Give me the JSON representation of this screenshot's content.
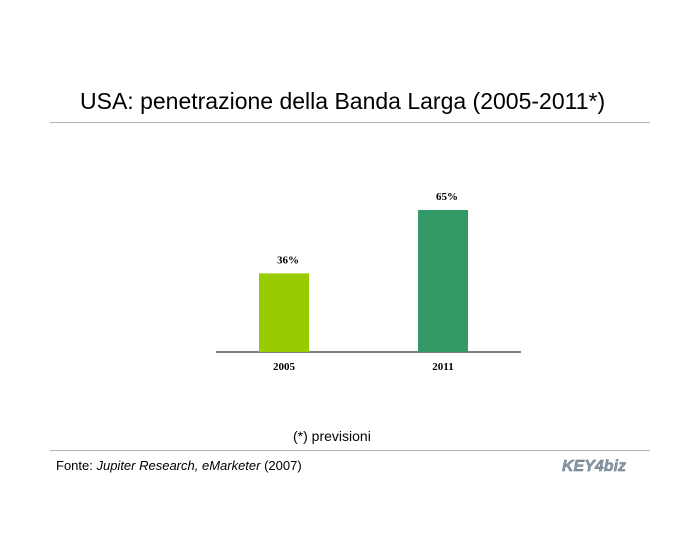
{
  "page": {
    "title": "USA: penetrazione della Banda Larga (2005-2011*)",
    "note": "(*) previsioni",
    "source_prefix": "Fonte: ",
    "source_italic": "Jupiter Research, eMarketer",
    "source_suffix": " (2007)",
    "logo_text": "KEY4biz"
  },
  "chart_data": {
    "type": "bar",
    "title": "",
    "xlabel": "",
    "ylabel": "",
    "categories": [
      "2005",
      "2011"
    ],
    "values": [
      36,
      65
    ],
    "value_labels": [
      "36%",
      "65%"
    ],
    "colors": [
      "#99cc00",
      "#339966"
    ],
    "ylim": [
      0,
      100
    ],
    "grid": false,
    "legend": "none"
  }
}
